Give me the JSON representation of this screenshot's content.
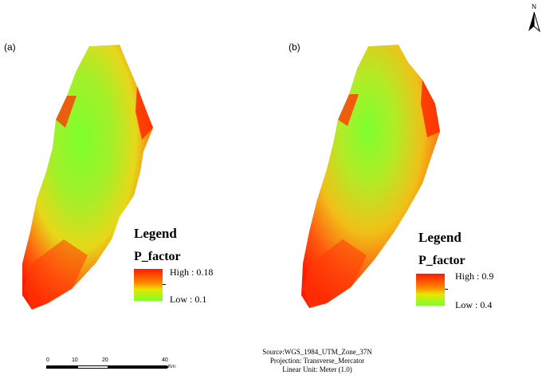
{
  "panels": [
    {
      "label": "(a)",
      "legend_title": "Legend",
      "field_name": "P_factor",
      "high_label": "High : 0.18",
      "low_label": "Low : 0.1"
    },
    {
      "label": "(b)",
      "legend_title": "Legend",
      "field_name": "P_factor",
      "high_label": "High : 0.9",
      "low_label": "Low : 0.4"
    }
  ],
  "north_arrow": {
    "label": "N",
    "icon": "north-arrow-icon"
  },
  "scale_bar": {
    "ticks": [
      "0",
      "10",
      "20",
      "40"
    ],
    "unit": "Km"
  },
  "source_info": {
    "line1": "Source:WGS_1984_UTM_Zone_37N",
    "line2": "Projection: Transverse_Mercator",
    "line3": "Linear Unit: Meter (1.0)"
  },
  "colors": {
    "high": "#ff1a00",
    "mid": "#ffb000",
    "low": "#7cff2e"
  }
}
